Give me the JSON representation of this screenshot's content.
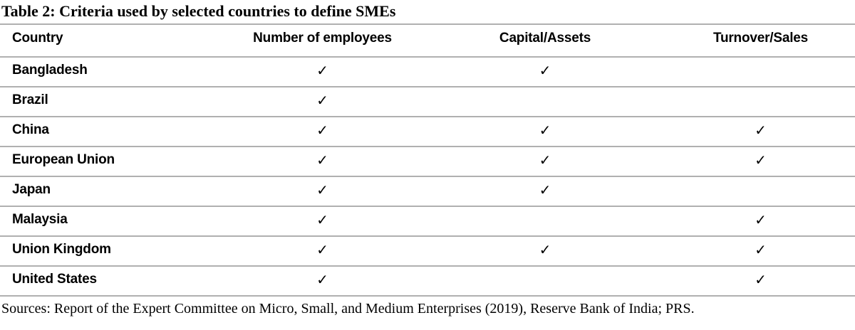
{
  "title": "Table 2: Criteria used by selected countries to define SMEs",
  "table": {
    "columns": [
      "Country",
      "Number of employees",
      "Capital/Assets",
      "Turnover/Sales"
    ],
    "check_glyph": "✓",
    "rows": [
      {
        "country": "Bangladesh",
        "marks": [
          "✓",
          "✓",
          ""
        ]
      },
      {
        "country": "Brazil",
        "marks": [
          "✓",
          "",
          ""
        ]
      },
      {
        "country": "China",
        "marks": [
          "✓",
          "✓",
          "✓"
        ]
      },
      {
        "country": "European Union",
        "marks": [
          "✓",
          "✓",
          "✓"
        ]
      },
      {
        "country": "Japan",
        "marks": [
          "✓",
          "✓",
          ""
        ]
      },
      {
        "country": "Malaysia",
        "marks": [
          "✓",
          "",
          "✓"
        ]
      },
      {
        "country": "Union Kingdom",
        "marks": [
          "✓",
          "✓",
          "✓"
        ]
      },
      {
        "country": "United States",
        "marks": [
          "✓",
          "",
          "✓"
        ]
      }
    ]
  },
  "source_note": "Sources: Report of the Expert Committee on Micro, Small, and Medium Enterprises (2019), Reserve Bank of India; PRS.",
  "colors": {
    "background": "#ffffff",
    "text": "#000000",
    "rule": "#b0b0b0"
  }
}
